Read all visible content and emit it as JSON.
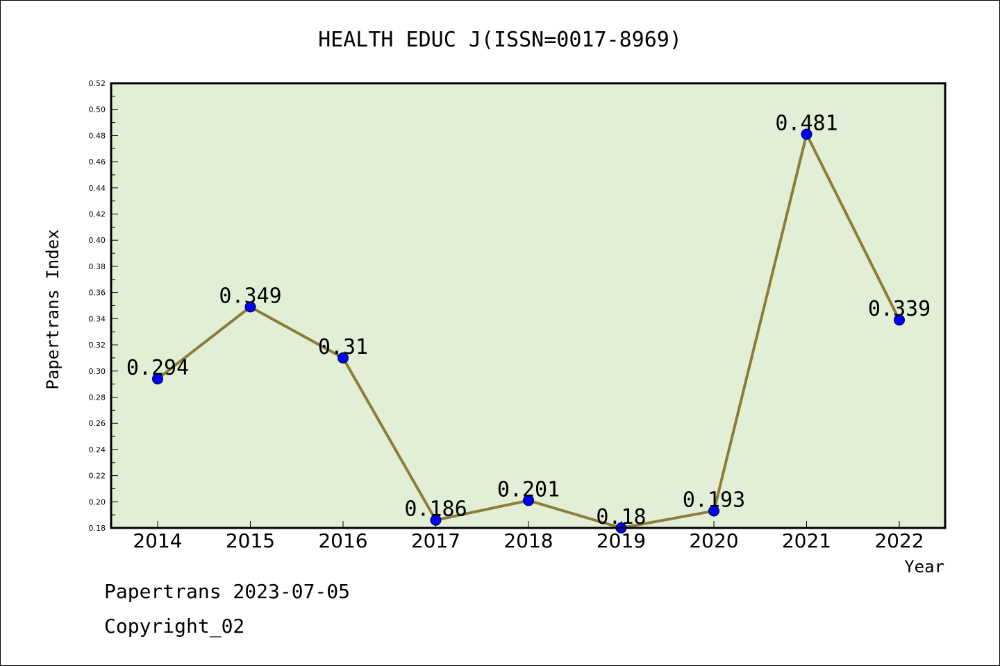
{
  "chart_data": {
    "type": "line",
    "title": "HEALTH EDUC J(ISSN=0017-8969)",
    "xlabel": "Year",
    "ylabel": "Papertrans Index",
    "categories": [
      "2014",
      "2015",
      "2016",
      "2017",
      "2018",
      "2019",
      "2020",
      "2021",
      "2022"
    ],
    "values": [
      0.294,
      0.349,
      0.31,
      0.186,
      0.201,
      0.18,
      0.193,
      0.481,
      0.339
    ],
    "value_labels": [
      "0.294",
      "0.349",
      "0.31",
      "0.186",
      "0.201",
      "0.18",
      "0.193",
      "0.481",
      "0.339"
    ],
    "ylim": [
      0.18,
      0.52
    ],
    "yticks": [
      "0.18",
      "0.20",
      "0.22",
      "0.24",
      "0.26",
      "0.28",
      "0.30",
      "0.32",
      "0.34",
      "0.36",
      "0.38",
      "0.40",
      "0.42",
      "0.44",
      "0.46",
      "0.48",
      "0.50",
      "0.52"
    ],
    "grid": false,
    "colors": {
      "plot_background": "#e2efd6",
      "line": "#8b7d3a",
      "marker": "#0000ff"
    }
  },
  "footer": {
    "line1": "Papertrans 2023-07-05",
    "line2": "Copyright_02"
  }
}
